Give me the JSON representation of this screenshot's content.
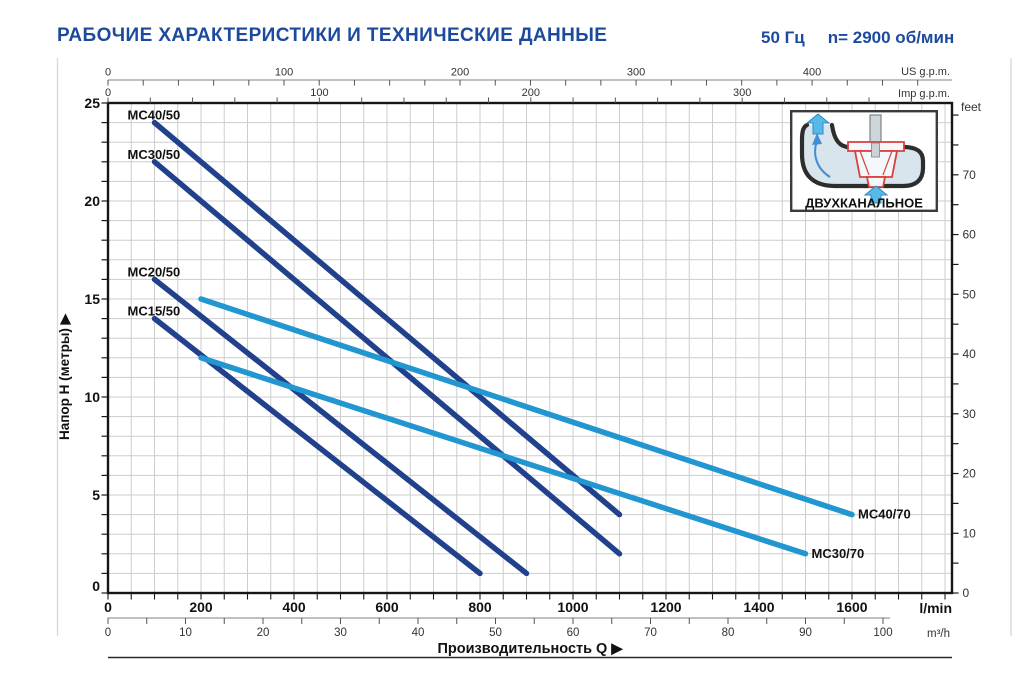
{
  "header": {
    "title": "РАБОЧИЕ ХАРАКТЕРИСТИКИ И ТЕХНИЧЕСКИЕ ДАННЫЕ",
    "frequency": "50 Гц",
    "speed": "n= 2900 об/мин",
    "accent_color": "#1c4a9c"
  },
  "inset": {
    "label": "ДВУХКАНАЛЬНОЕ"
  },
  "chart_data": {
    "type": "line",
    "xlabel": "Производительность Q  ▶",
    "ylabel": "Напор H (метры)  ▶",
    "xlim_lmin": [
      0,
      1815
    ],
    "ylim_m": [
      0,
      25
    ],
    "grid": true,
    "axes": {
      "x_bottom_lmin": {
        "label": "l/min",
        "majors": [
          0,
          200,
          400,
          600,
          800,
          1000,
          1200,
          1400,
          1600
        ],
        "minor_step": 50
      },
      "x_bottom_m3h": {
        "label": "m³/h",
        "majors": [
          0,
          10,
          20,
          30,
          40,
          50,
          60,
          70,
          80,
          90,
          100
        ],
        "minor_step": 5,
        "lmin_per_unit": 16.6667
      },
      "x_top_us": {
        "label": "US g.p.m.",
        "majors": [
          0,
          100,
          200,
          300,
          400
        ],
        "minor_step": 20,
        "lmin_per_unit": 3.7854
      },
      "x_top_imp": {
        "label": "Imp g.p.m.",
        "majors": [
          0,
          100,
          200,
          300
        ],
        "minor_step": 20,
        "lmin_per_unit": 4.5461
      },
      "y_left": {
        "label": "Напор H (метры)",
        "majors": [
          0,
          5,
          10,
          15,
          20,
          25
        ],
        "minor_step": 1
      },
      "y_right": {
        "label": "feet",
        "majors": [
          0,
          10,
          20,
          30,
          40,
          50,
          60,
          70
        ],
        "minor_step": 5,
        "m_per_unit": 0.3048
      }
    },
    "series": [
      {
        "name": "MC40/50",
        "color": "#21418c",
        "label_at": "start",
        "points_lmin_m": [
          [
            100,
            24
          ],
          [
            1100,
            4
          ]
        ]
      },
      {
        "name": "MC30/50",
        "color": "#21418c",
        "label_at": "start",
        "points_lmin_m": [
          [
            100,
            22
          ],
          [
            1100,
            2
          ]
        ]
      },
      {
        "name": "MC20/50",
        "color": "#21418c",
        "label_at": "start",
        "points_lmin_m": [
          [
            100,
            16
          ],
          [
            900,
            1
          ]
        ]
      },
      {
        "name": "MC15/50",
        "color": "#21418c",
        "label_at": "start",
        "points_lmin_m": [
          [
            100,
            14
          ],
          [
            800,
            1
          ]
        ]
      },
      {
        "name": "MC40/70",
        "color": "#2196d0",
        "label_at": "end",
        "points_lmin_m": [
          [
            200,
            15
          ],
          [
            1600,
            4
          ]
        ]
      },
      {
        "name": "MC30/70",
        "color": "#2196d0",
        "label_at": "end",
        "points_lmin_m": [
          [
            200,
            12
          ],
          [
            1500,
            2
          ]
        ]
      }
    ]
  }
}
